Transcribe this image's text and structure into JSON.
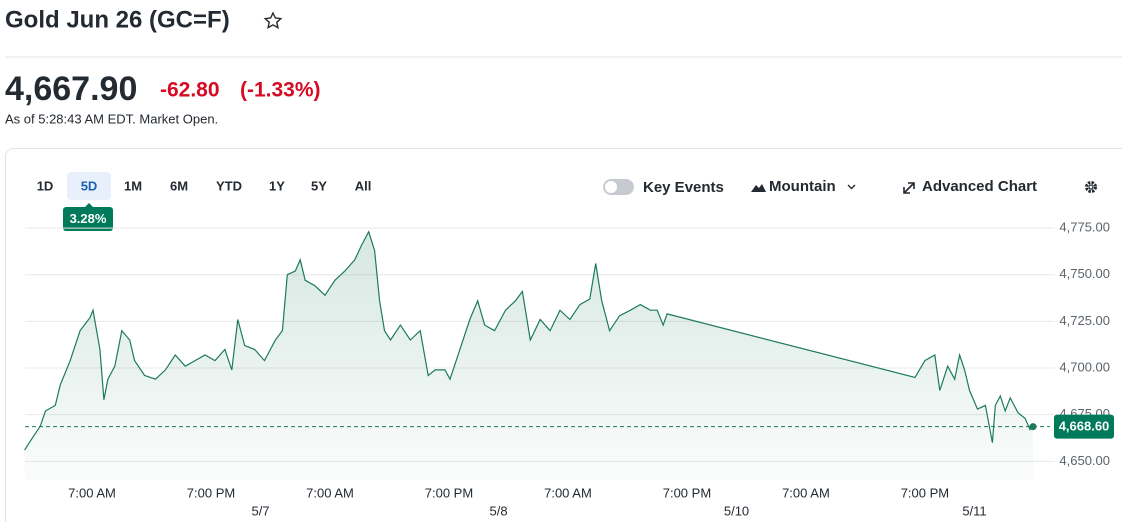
{
  "header": {
    "title": "Gold Jun 26 (GC=F)",
    "price": "4,667.90",
    "change": "-62.80",
    "change_percent": "(-1.33%)",
    "as_of": "As of 5:28:43 AM EDT. Market Open."
  },
  "toolbar": {
    "ranges": [
      "1D",
      "5D",
      "1M",
      "6M",
      "YTD",
      "1Y",
      "5Y",
      "All"
    ],
    "selected_range": "5D",
    "range_change": "3.28%",
    "key_events": "Key Events",
    "chart_style": "Mountain",
    "advanced_chart": "Advanced Chart"
  },
  "chart_data": {
    "type": "line",
    "color": "#1d7a5c",
    "grid": true,
    "x": [
      0.2,
      0.8,
      1.8,
      2.3,
      3.3,
      3.8,
      4.8,
      5.8,
      6.8,
      7.1,
      7.8,
      8.2,
      8.6,
      9.3,
      10.0,
      10.8,
      11.3,
      12.3,
      13.4,
      14.4,
      15.4,
      16.4,
      17.4,
      18.4,
      19.4,
      20.4,
      21.1,
      21.7,
      22.4,
      23.4,
      24.4,
      25.5,
      26.2,
      26.7,
      27.5,
      28.0,
      28.5,
      29.5,
      30.5,
      31.5,
      32.5,
      33.5,
      34.2,
      34.9,
      35.5,
      36.0,
      36.5,
      37.1,
      38.1,
      39.1,
      40.1,
      40.9,
      41.6,
      42.6,
      43.1,
      44.1,
      45.1,
      45.9,
      46.6,
      47.6,
      48.7,
      49.7,
      50.4,
      51.2,
      52.2,
      53.2,
      54.2,
      55.2,
      56.2,
      57.2,
      57.8,
      58.4,
      59.2,
      60.2,
      61.3,
      62.3,
      63.3,
      64.0,
      64.6,
      65.0,
      90.0,
      91.0,
      92.0,
      92.5,
      93.3,
      94.0,
      94.5,
      95.0,
      95.5,
      96.3,
      97.1,
      97.8,
      98.1,
      98.6,
      99.1,
      99.6,
      100.4,
      101.1,
      101.6,
      101.9
    ],
    "values": [
      4656,
      4661,
      4669,
      4677,
      4680,
      4691,
      4704,
      4720,
      4727,
      4731,
      4710,
      4683,
      4694,
      4701,
      4720,
      4715,
      4704,
      4696,
      4694,
      4699,
      4707,
      4701,
      4704,
      4707,
      4704,
      4710,
      4699,
      4726,
      4712,
      4710,
      4704,
      4715,
      4720,
      4750,
      4752,
      4758,
      4747,
      4744,
      4739,
      4747,
      4752,
      4758,
      4766,
      4773,
      4763,
      4736,
      4720,
      4715,
      4723,
      4715,
      4720,
      4696,
      4699,
      4699,
      4694,
      4710,
      4726,
      4736,
      4723,
      4720,
      4731,
      4736,
      4741,
      4715,
      4726,
      4720,
      4731,
      4726,
      4734,
      4737,
      4756,
      4736,
      4720,
      4728,
      4731,
      4734,
      4731,
      4731,
      4723,
      4729,
      4695,
      4704,
      4707,
      4688,
      4701,
      4694,
      4707,
      4699,
      4688,
      4678,
      4680,
      4660,
      4680,
      4685,
      4677,
      4684,
      4676,
      4673,
      4667,
      4668.6
    ],
    "xlim": [
      0,
      102
    ],
    "xticks": [
      {
        "value": 7,
        "label": "7:00 AM"
      },
      {
        "value": 19,
        "label": "7:00 PM"
      },
      {
        "value": 31,
        "label": "7:00 AM"
      },
      {
        "value": 43,
        "label": "7:00 PM"
      },
      {
        "value": 55,
        "label": "7:00 AM"
      },
      {
        "value": 67,
        "label": "7:00 PM"
      },
      {
        "value": 79,
        "label": "7:00 AM"
      },
      {
        "value": 91,
        "label": "7:00 PM"
      }
    ],
    "date_ticks": [
      {
        "value": 24,
        "label": "5/7"
      },
      {
        "value": 48,
        "label": "5/8"
      },
      {
        "value": 72,
        "label": "5/10"
      },
      {
        "value": 96,
        "label": "5/11"
      }
    ],
    "ylim": [
      4640,
      4782
    ],
    "yticks": [
      {
        "value": 4650,
        "label": "4,650.00"
      },
      {
        "value": 4675,
        "label": "4,675.00"
      },
      {
        "value": 4700,
        "label": "4,700.00"
      },
      {
        "value": 4725,
        "label": "4,725.00"
      },
      {
        "value": 4750,
        "label": "4,750.00"
      },
      {
        "value": 4775,
        "label": "4,775.00"
      }
    ],
    "last_price": {
      "value": 4668.6,
      "label": "4,668.60"
    }
  }
}
